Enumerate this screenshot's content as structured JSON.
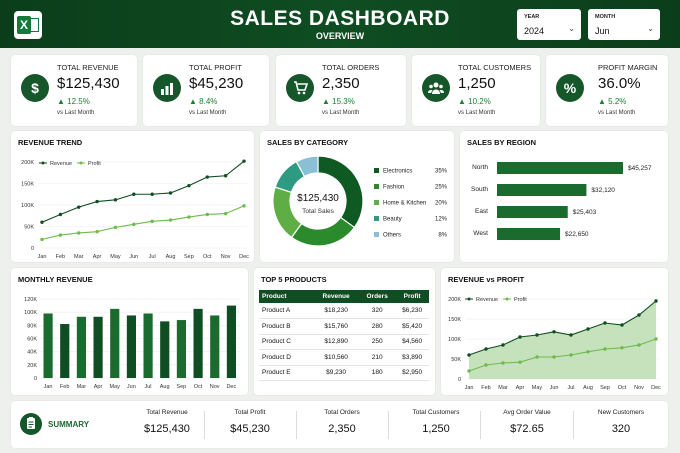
{
  "header": {
    "title": "SALES DASHBOARD",
    "subtitle": "OVERVIEW",
    "logo_letter": "X",
    "year": {
      "label": "YEAR",
      "value": "2024"
    },
    "month": {
      "label": "MONTH",
      "value": "Jun"
    }
  },
  "kpis": [
    {
      "label": "TOTAL REVENUE",
      "value": "$125,430",
      "change": "▲ 12.5%",
      "sub": "vs Last Month",
      "icon": "dollar-icon"
    },
    {
      "label": "TOTAL PROFIT",
      "value": "$45,230",
      "change": "▲ 8.4%",
      "sub": "vs Last Month",
      "icon": "bar-chart-icon"
    },
    {
      "label": "TOTAL ORDERS",
      "value": "2,350",
      "change": "▲ 15.3%",
      "sub": "vs Last Month",
      "icon": "cart-icon"
    },
    {
      "label": "TOTAL CUSTOMERS",
      "value": "1,250",
      "change": "▲ 10.2%",
      "sub": "vs Last Month",
      "icon": "users-icon"
    },
    {
      "label": "PROFIT MARGIN",
      "value": "36.0%",
      "change": "▲ 5.2%",
      "sub": "vs Last Month",
      "icon": "percent-icon"
    }
  ],
  "panels": {
    "revenue_trend": "REVENUE TREND",
    "sales_by_category": "SALES BY CATEGORY",
    "sales_by_region": "SALES BY REGION",
    "monthly_revenue": "MONTHLY REVENUE",
    "top_products": "TOP 5 PRODUCTS",
    "revenue_vs_profit": "REVENUE vs PROFIT"
  },
  "donut_center": {
    "value": "$125,430",
    "label": "Total Sales"
  },
  "top_products": {
    "headers": [
      "Product",
      "Revenue",
      "Orders",
      "Profit"
    ],
    "rows": [
      [
        "Product A",
        "$18,230",
        "320",
        "$6,230"
      ],
      [
        "Product B",
        "$15,760",
        "280",
        "$5,420"
      ],
      [
        "Product C",
        "$12,890",
        "250",
        "$4,560"
      ],
      [
        "Product D",
        "$10,560",
        "210",
        "$3,890"
      ],
      [
        "Product E",
        "$9,230",
        "180",
        "$2,950"
      ]
    ]
  },
  "summary": {
    "title": "SUMMARY",
    "items": [
      {
        "label": "Total Revenue",
        "value": "$125,430"
      },
      {
        "label": "Total Profit",
        "value": "$45,230"
      },
      {
        "label": "Total Orders",
        "value": "2,350"
      },
      {
        "label": "Total Customers",
        "value": "1,250"
      },
      {
        "label": "Avg Order Value",
        "value": "$72.65"
      },
      {
        "label": "New Customers",
        "value": "320"
      }
    ]
  },
  "colors": {
    "dark_green": "#0f4d22",
    "mid_green": "#1b7f32",
    "light_green": "#7cc36b",
    "up": "#1b7f32"
  },
  "chart_data": [
    {
      "type": "line",
      "title": "REVENUE TREND",
      "categories": [
        "Jan",
        "Feb",
        "Mar",
        "Apr",
        "May",
        "Jun",
        "Jul",
        "Aug",
        "Sep",
        "Oct",
        "Nov",
        "Dec"
      ],
      "yticks": [
        "0",
        "50K",
        "100K",
        "150K",
        "200K"
      ],
      "ylim": [
        0,
        200
      ],
      "series": [
        {
          "name": "Revenue",
          "values": [
            60,
            78,
            95,
            108,
            112,
            125,
            125,
            128,
            145,
            165,
            168,
            202
          ]
        },
        {
          "name": "Profit",
          "values": [
            20,
            30,
            35,
            38,
            48,
            55,
            62,
            65,
            72,
            78,
            80,
            98
          ]
        }
      ],
      "legend": "top-left"
    },
    {
      "type": "pie",
      "title": "SALES BY CATEGORY",
      "categories": [
        "Electronics",
        "Fashion",
        "Home & Kitchen",
        "Beauty",
        "Others"
      ],
      "values": [
        35,
        25,
        20,
        12,
        8
      ],
      "labels": [
        "35%",
        "25%",
        "20%",
        "12%",
        "8%"
      ],
      "colors": [
        "#0f5a23",
        "#2b8a2b",
        "#5fae45",
        "#2f9a82",
        "#8bbfd6"
      ]
    },
    {
      "type": "bar",
      "title": "SALES BY REGION",
      "categories": [
        "North",
        "South",
        "East",
        "West"
      ],
      "values": [
        45257,
        32120,
        25403,
        22650
      ],
      "labels": [
        "$45,257",
        "$32,120",
        "$25,403",
        "$22,650"
      ],
      "orientation": "horizontal"
    },
    {
      "type": "bar",
      "title": "MONTHLY REVENUE",
      "categories": [
        "Jan",
        "Feb",
        "Mar",
        "Apr",
        "May",
        "Jun",
        "Jul",
        "Aug",
        "Sep",
        "Oct",
        "Nov",
        "Dec"
      ],
      "values": [
        98,
        82,
        93,
        93,
        105,
        95,
        98,
        86,
        88,
        105,
        95,
        110
      ],
      "yticks": [
        "0",
        "20K",
        "40K",
        "60K",
        "80K",
        "100K",
        "120K"
      ],
      "ylim": [
        0,
        120
      ]
    },
    {
      "type": "area",
      "title": "REVENUE vs PROFIT",
      "categories": [
        "Jan",
        "Feb",
        "Mar",
        "Apr",
        "May",
        "Jun",
        "Jul",
        "Aug",
        "Sep",
        "Oct",
        "Nov",
        "Dec"
      ],
      "yticks": [
        "0",
        "50K",
        "100K",
        "150K",
        "200K"
      ],
      "ylim": [
        0,
        200
      ],
      "series": [
        {
          "name": "Revenue",
          "values": [
            60,
            75,
            85,
            105,
            110,
            118,
            110,
            125,
            140,
            135,
            160,
            195
          ]
        },
        {
          "name": "Profit",
          "values": [
            20,
            35,
            40,
            42,
            55,
            55,
            60,
            68,
            75,
            78,
            85,
            100
          ]
        }
      ],
      "legend": "top-left"
    }
  ]
}
